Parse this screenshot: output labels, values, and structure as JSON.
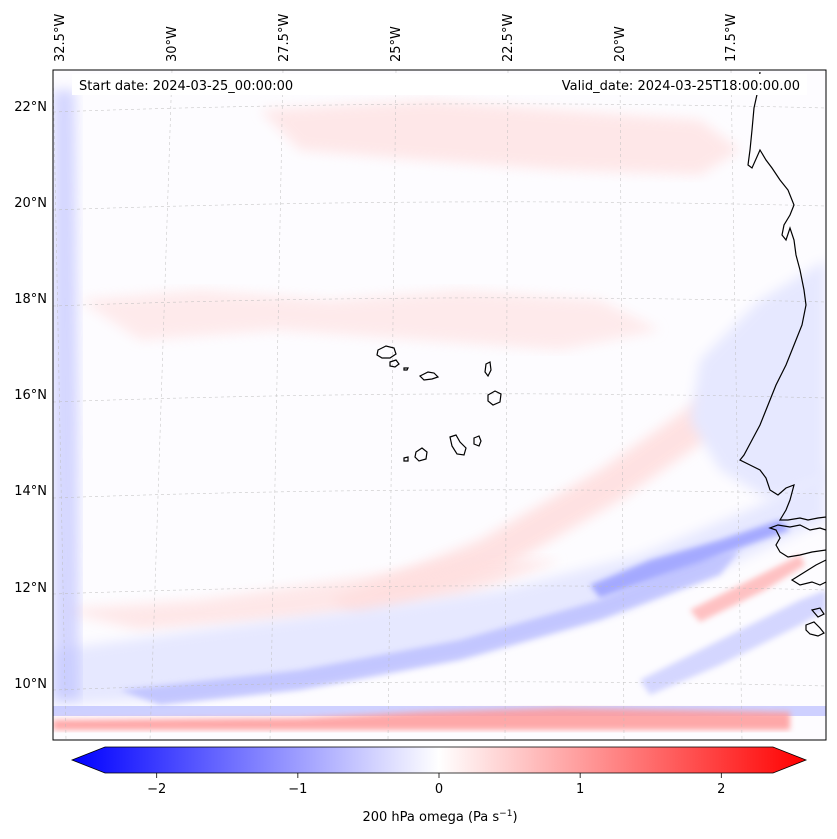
{
  "map": {
    "start_date": "Start date: 2024-03-25_00:00:00",
    "valid_date": "Valid_date: 2024-03-25T18:00:00.00",
    "lon_labels": [
      "32.5°W",
      "30°W",
      "27.5°W",
      "25°W",
      "22.5°W",
      "20°W",
      "17.5°W"
    ],
    "lat_labels": [
      "22°N",
      "20°N",
      "18°N",
      "16°N",
      "14°N",
      "12°N",
      "10°N"
    ],
    "field_colors": {
      "light_red": "#ffdfdf",
      "red": "#ff9a9a",
      "light_blue": "#e6e8ff",
      "blue": "#b9bdff",
      "dark_blue": "#8f95ff"
    }
  },
  "colorbar": {
    "label_prefix": "200 hPa omega (Pa s",
    "label_exponent": "−1",
    "label_suffix": ")",
    "min": -2.6,
    "max": 2.6,
    "ticks": [
      {
        "value": -2,
        "label": "−2"
      },
      {
        "value": -1,
        "label": "−1"
      },
      {
        "value": 0,
        "label": "0"
      },
      {
        "value": 1,
        "label": "1"
      },
      {
        "value": 2,
        "label": "2"
      }
    ],
    "colors": {
      "low": "#0000ff",
      "mid": "#ffffff",
      "high": "#ff0000"
    }
  }
}
